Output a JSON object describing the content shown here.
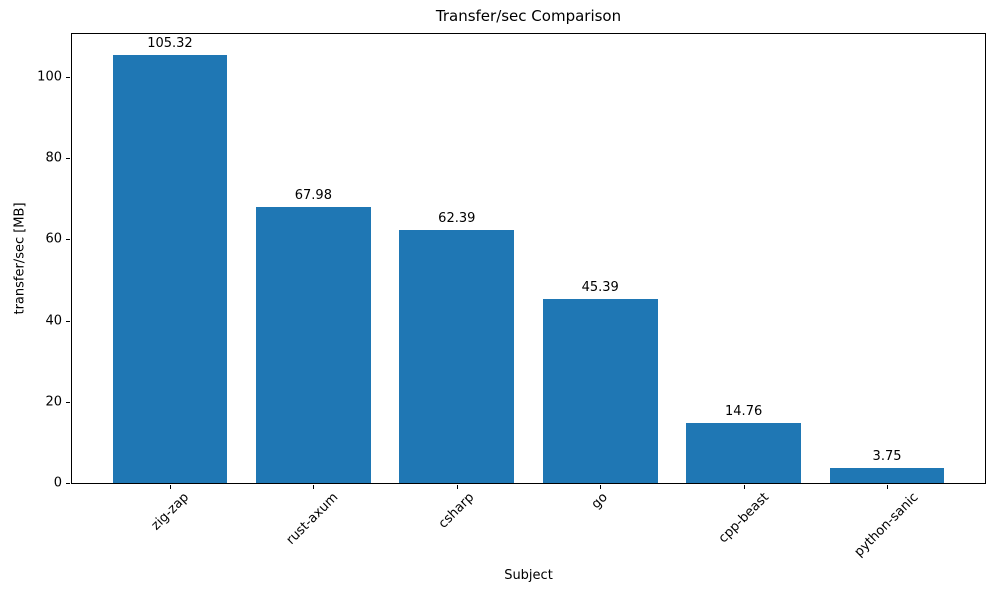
{
  "chart_data": {
    "type": "bar",
    "title": "Transfer/sec Comparison",
    "xlabel": "Subject",
    "ylabel": "transfer/sec [MB]",
    "categories": [
      "zig-zap",
      "rust-axum",
      "csharp",
      "go",
      "cpp-beast",
      "python-sanic"
    ],
    "values": [
      105.32,
      67.98,
      62.39,
      45.39,
      14.76,
      3.75
    ],
    "bar_labels": [
      "105.32",
      "67.98",
      "62.39",
      "45.39",
      "14.76",
      "3.75"
    ],
    "yticks": [
      0,
      20,
      40,
      60,
      80,
      100
    ],
    "ylim": [
      0,
      110.586
    ],
    "bar_color": "#1f77b4",
    "text_color": "#000000",
    "grid": false,
    "legend_position": "none"
  }
}
